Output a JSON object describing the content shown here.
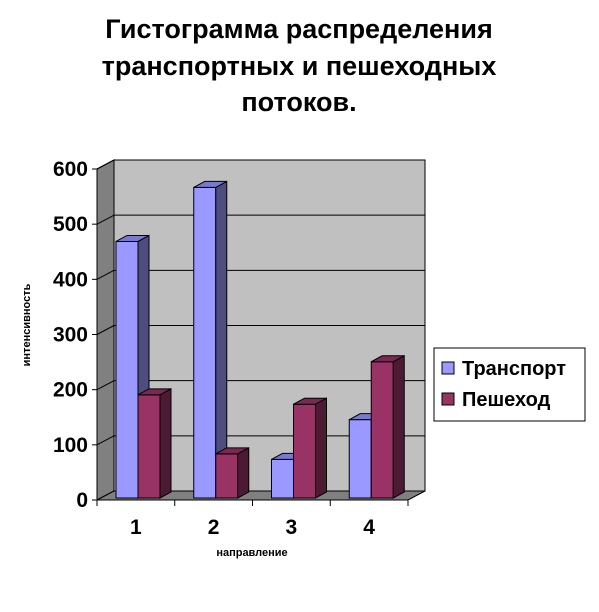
{
  "chart_data": {
    "type": "bar",
    "title_lines": [
      "Гистограмма распределения",
      "транспортных и пешеходных",
      "потоков."
    ],
    "xlabel": "направление",
    "ylabel": "интенсивность",
    "categories": [
      "1",
      "2",
      "3",
      "4"
    ],
    "series": [
      {
        "name": "Транспорт",
        "values": [
          465,
          563,
          70,
          142
        ],
        "color": "#9999ff"
      },
      {
        "name": "Пешеход",
        "values": [
          187,
          80,
          170,
          247
        ],
        "color": "#993366"
      }
    ],
    "ylim": [
      0,
      600
    ],
    "yticks": [
      0,
      100,
      200,
      300,
      400,
      500,
      600
    ],
    "grid": true,
    "legend": "right",
    "background": "#c0c0c0"
  }
}
